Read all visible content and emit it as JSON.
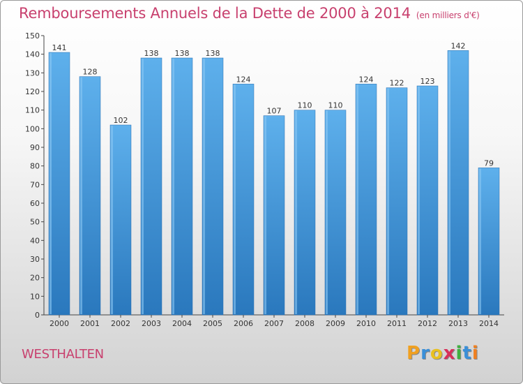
{
  "chart_data": {
    "type": "bar",
    "title": "Remboursements Annuels de la Dette de 2000 à 2014",
    "subtitle": "(en milliers d'€)",
    "categories": [
      "2000",
      "2001",
      "2002",
      "2003",
      "2004",
      "2005",
      "2006",
      "2007",
      "2008",
      "2009",
      "2010",
      "2011",
      "2012",
      "2013",
      "2014"
    ],
    "values": [
      141,
      128,
      102,
      138,
      138,
      138,
      124,
      107,
      110,
      110,
      124,
      122,
      123,
      142,
      79
    ],
    "ylim": [
      0,
      150
    ],
    "yticks": [
      0,
      10,
      20,
      30,
      40,
      50,
      60,
      70,
      80,
      90,
      100,
      110,
      120,
      130,
      140,
      150
    ],
    "grid": false,
    "bar_color": "#4a9fe0",
    "title_color": "#c8406e"
  },
  "place_name": "WESTHALTEN",
  "logo": {
    "letters": [
      {
        "ch": "P",
        "color": "#f0a020"
      },
      {
        "ch": "r",
        "color": "#3a8fd8"
      },
      {
        "ch": "o",
        "color": "#e8c020"
      },
      {
        "ch": "x",
        "color": "#d8305a"
      },
      {
        "ch": "i",
        "color": "#40b040"
      },
      {
        "ch": "t",
        "color": "#3a8fd8"
      },
      {
        "ch": "i",
        "color": "#f08020"
      }
    ]
  }
}
